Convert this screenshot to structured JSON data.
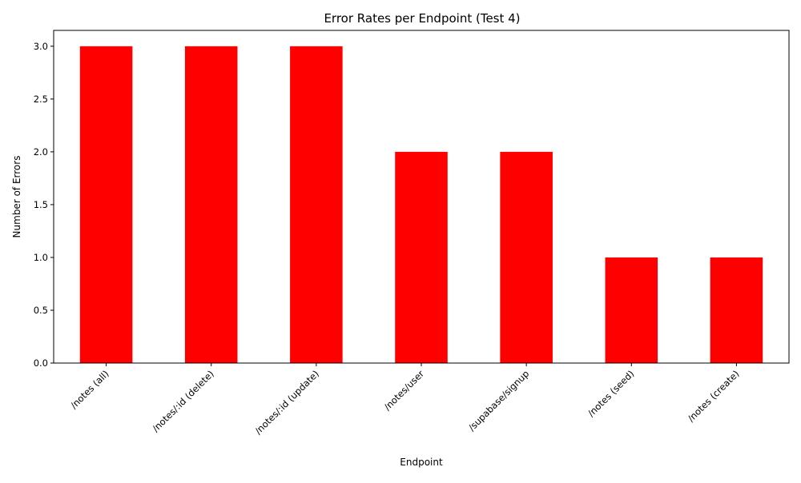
{
  "chart_data": {
    "type": "bar",
    "title": "Error Rates per Endpoint (Test 4)",
    "xlabel": "Endpoint",
    "ylabel": "Number of Errors",
    "categories": [
      "/notes (all)",
      "/notes/:id (delete)",
      "/notes/:id (update)",
      "/notes/user",
      "/supabase/signup",
      "/notes (seed)",
      "/notes (create)"
    ],
    "values": [
      3,
      3,
      3,
      2,
      2,
      1,
      1
    ],
    "ylim": [
      0,
      3.15
    ],
    "yticks": [
      0.0,
      0.5,
      1.0,
      1.5,
      2.0,
      2.5,
      3.0
    ],
    "ytick_labels": [
      "0.0",
      "0.5",
      "1.0",
      "1.5",
      "2.0",
      "2.5",
      "3.0"
    ],
    "bar_color": "#ff0000",
    "grid": false,
    "legend": "none"
  }
}
